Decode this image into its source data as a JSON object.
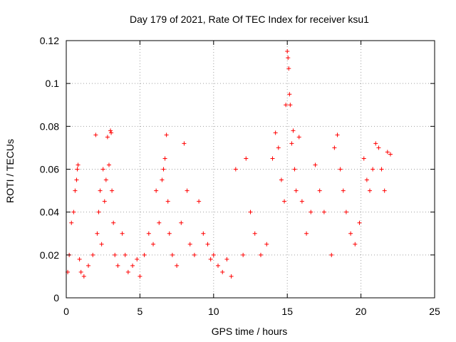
{
  "chart_data": {
    "type": "scatter",
    "title": "Day 179 of 2021, Rate Of TEC Index for receiver ksu1",
    "xlabel": "GPS time / hours",
    "ylabel": "ROTI / TECUs",
    "xlim": [
      0,
      25
    ],
    "ylim": [
      0,
      0.12
    ],
    "x_ticks": [
      0,
      5,
      10,
      15,
      20,
      25
    ],
    "y_ticks": [
      0,
      0.02,
      0.04,
      0.06,
      0.08,
      0.1,
      0.12
    ],
    "y_tick_labels": [
      "0",
      "0.02",
      "0.04",
      "0.06",
      "0.08",
      "0.1",
      "0.12"
    ],
    "grid": true,
    "marker": "+",
    "color": "#ff0000",
    "series": [
      {
        "x": [
          0.1,
          0.2,
          0.35,
          0.5,
          0.6,
          0.7,
          0.75,
          0.8,
          0.9,
          1.0,
          1.2,
          1.5,
          1.8,
          2.0,
          2.1,
          2.2,
          2.3,
          2.4,
          2.5,
          2.6,
          2.7,
          2.8,
          2.9,
          3.0,
          3.05,
          3.1,
          3.2,
          3.3,
          3.5,
          3.8,
          4.0,
          4.2,
          4.5,
          4.8,
          5.0,
          5.3,
          5.6,
          5.9,
          6.1,
          6.3,
          6.5,
          6.6,
          6.7,
          6.8,
          6.9,
          7.0,
          7.2,
          7.5,
          7.8,
          8.0,
          8.2,
          8.4,
          8.7,
          9.0,
          9.3,
          9.6,
          9.8,
          10.0,
          10.3,
          10.6,
          10.9,
          11.2,
          11.5,
          12.0,
          12.2,
          12.5,
          12.8,
          13.2,
          13.6,
          14.0,
          14.2,
          14.4,
          14.6,
          14.8,
          14.9,
          15.0,
          15.05,
          15.1,
          15.15,
          15.2,
          15.3,
          15.4,
          15.5,
          15.6,
          15.8,
          16.0,
          16.3,
          16.6,
          16.9,
          17.2,
          17.5,
          18.0,
          18.2,
          18.4,
          18.6,
          18.8,
          19.0,
          19.3,
          19.6,
          19.9,
          20.2,
          20.4,
          20.6,
          20.8,
          21.0,
          21.2,
          21.4,
          21.6,
          21.8,
          22.0
        ],
        "y": [
          0.012,
          0.02,
          0.035,
          0.04,
          0.05,
          0.055,
          0.06,
          0.062,
          0.018,
          0.012,
          0.01,
          0.015,
          0.02,
          0.076,
          0.03,
          0.04,
          0.05,
          0.025,
          0.06,
          0.045,
          0.055,
          0.075,
          0.062,
          0.078,
          0.077,
          0.05,
          0.035,
          0.02,
          0.015,
          0.03,
          0.02,
          0.012,
          0.015,
          0.018,
          0.01,
          0.02,
          0.03,
          0.025,
          0.05,
          0.035,
          0.055,
          0.06,
          0.065,
          0.076,
          0.045,
          0.03,
          0.02,
          0.015,
          0.035,
          0.072,
          0.05,
          0.025,
          0.02,
          0.045,
          0.03,
          0.025,
          0.018,
          0.02,
          0.015,
          0.012,
          0.018,
          0.01,
          0.06,
          0.02,
          0.065,
          0.04,
          0.03,
          0.02,
          0.025,
          0.065,
          0.077,
          0.07,
          0.055,
          0.045,
          0.09,
          0.115,
          0.112,
          0.107,
          0.095,
          0.09,
          0.072,
          0.078,
          0.06,
          0.05,
          0.075,
          0.045,
          0.03,
          0.04,
          0.062,
          0.05,
          0.04,
          0.02,
          0.07,
          0.076,
          0.06,
          0.05,
          0.04,
          0.03,
          0.025,
          0.035,
          0.065,
          0.055,
          0.05,
          0.06,
          0.072,
          0.07,
          0.06,
          0.05,
          0.068,
          0.067
        ]
      }
    ]
  }
}
